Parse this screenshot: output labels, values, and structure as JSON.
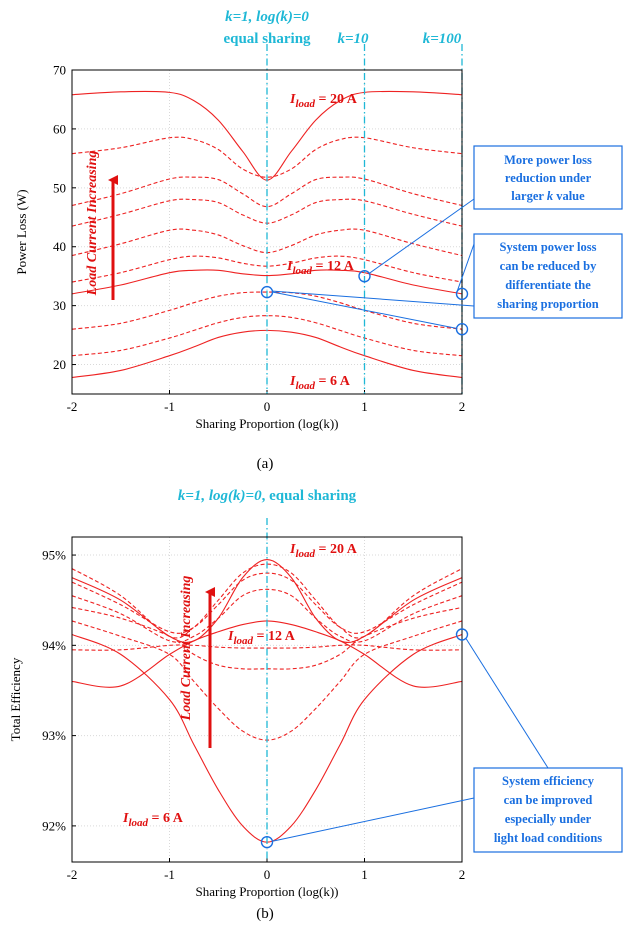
{
  "chart_data": [
    {
      "type": "line",
      "panel_label": "(a)",
      "xlabel": "Sharing Proportion (log(k))",
      "ylabel": "Power Loss (W)",
      "xlim": [
        -2,
        2
      ],
      "ylim": [
        15,
        70
      ],
      "xticks": [
        "-2",
        "-1",
        "0",
        "1",
        "2"
      ],
      "yticks": [
        "20",
        "30",
        "40",
        "50",
        "60",
        "70"
      ],
      "grid": true,
      "x": [
        -2,
        -1.5,
        -1,
        -0.75,
        -0.5,
        -0.25,
        0,
        0.25,
        0.5,
        0.75,
        1,
        1.5,
        2
      ],
      "series": [
        {
          "style": "solid",
          "values": [
            17.8,
            19.0,
            21.5,
            23.0,
            24.6,
            25.5,
            25.8,
            25.5,
            24.6,
            23.0,
            21.5,
            19.0,
            17.8
          ]
        },
        {
          "style": "dashed",
          "values": [
            21.5,
            22.4,
            24.5,
            25.8,
            27.1,
            28.0,
            28.3,
            28.0,
            27.1,
            25.8,
            24.5,
            22.4,
            21.5
          ]
        },
        {
          "style": "dashed",
          "values": [
            26.0,
            27.0,
            29.2,
            30.5,
            31.6,
            32.2,
            32.3,
            32.2,
            31.6,
            30.5,
            29.2,
            27.0,
            26.0
          ]
        },
        {
          "style": "solid",
          "values": [
            32.0,
            33.5,
            35.6,
            36.0,
            36.0,
            35.4,
            35.1,
            35.4,
            36.0,
            36.0,
            35.6,
            33.5,
            32.0
          ]
        },
        {
          "style": "dashed",
          "values": [
            34.0,
            35.6,
            37.8,
            38.4,
            38.1,
            37.2,
            36.7,
            37.2,
            38.1,
            38.4,
            37.8,
            35.6,
            34.0
          ]
        },
        {
          "style": "dashed",
          "values": [
            38.5,
            40.5,
            42.8,
            42.8,
            42.0,
            40.2,
            39.0,
            40.2,
            42.0,
            42.8,
            42.8,
            40.5,
            38.5
          ]
        },
        {
          "style": "dashed",
          "values": [
            43.5,
            45.5,
            47.8,
            48.0,
            47.5,
            45.4,
            44.0,
            45.4,
            47.5,
            48.0,
            47.8,
            45.5,
            43.5
          ]
        },
        {
          "style": "dashed",
          "values": [
            47.0,
            49.0,
            51.5,
            51.8,
            51.4,
            49.0,
            46.8,
            49.0,
            51.4,
            51.8,
            51.5,
            49.0,
            47.0
          ]
        },
        {
          "style": "dashed",
          "values": [
            55.8,
            56.8,
            58.5,
            58.2,
            56.5,
            53.2,
            51.8,
            53.2,
            56.5,
            58.2,
            58.5,
            56.8,
            55.8
          ]
        },
        {
          "style": "solid",
          "values": [
            65.8,
            66.3,
            66.2,
            64.8,
            61.5,
            56.2,
            51.3,
            56.2,
            61.5,
            64.8,
            66.2,
            66.3,
            65.8
          ]
        }
      ],
      "vlines": [
        0,
        1,
        2
      ],
      "vline_labels": [
        {
          "parts": [
            "k=1, log(k)=0"
          ],
          "second": "equal sharing"
        },
        {
          "text": "k=10"
        },
        {
          "text": "k=100"
        }
      ],
      "labels": {
        "i20": {
          "main": "I",
          "sub": "load",
          "rest": " = 20 A"
        },
        "i12": {
          "main": "I",
          "sub": "load",
          "rest": " = 12 A"
        },
        "i6": {
          "main": "I",
          "sub": "load",
          "rest": " = 6 A"
        },
        "arrow": "Load Current Increasing"
      },
      "markers": [
        [
          0,
          32.3
        ],
        [
          1,
          35.0
        ],
        [
          2,
          32.0
        ],
        [
          2,
          26.0
        ]
      ],
      "callouts": [
        {
          "lines": [
            "More power loss",
            "reduction under",
            "larger k value"
          ]
        },
        {
          "lines": [
            "System power loss",
            "can be reduced by",
            "differentiate the",
            "sharing proportion"
          ]
        }
      ]
    },
    {
      "type": "line",
      "panel_label": "(b)",
      "xlabel": "Sharing Proportion (log(k))",
      "ylabel": "Total Efficiency",
      "xlim": [
        -2,
        2
      ],
      "ylim": [
        91.6,
        95.2
      ],
      "xticks": [
        "-2",
        "-1",
        "0",
        "1",
        "2"
      ],
      "yticks": [
        "92%",
        "93%",
        "94%",
        "95%"
      ],
      "grid": true,
      "x": [
        -2,
        -1.5,
        -1,
        -0.75,
        -0.5,
        -0.25,
        0,
        0.25,
        0.5,
        0.75,
        1,
        1.5,
        2
      ],
      "series": [
        {
          "style": "solid",
          "values": [
            94.12,
            93.9,
            93.4,
            92.9,
            92.4,
            92.0,
            91.82,
            92.0,
            92.4,
            92.9,
            93.4,
            93.9,
            94.12
          ]
        },
        {
          "style": "dashed",
          "values": [
            94.27,
            94.1,
            93.9,
            93.6,
            93.3,
            93.05,
            92.95,
            93.05,
            93.3,
            93.6,
            93.9,
            94.1,
            94.27
          ]
        },
        {
          "style": "dashed",
          "values": [
            94.42,
            94.3,
            94.1,
            93.9,
            93.78,
            93.74,
            93.74,
            93.74,
            93.78,
            93.9,
            94.1,
            94.3,
            94.42
          ]
        },
        {
          "style": "dashed",
          "values": [
            93.95,
            93.95,
            94.0,
            94.0,
            93.98,
            93.97,
            93.97,
            93.97,
            93.98,
            94.0,
            94.0,
            93.95,
            93.95
          ]
        },
        {
          "style": "solid",
          "values": [
            93.6,
            93.55,
            93.9,
            94.05,
            94.15,
            94.23,
            94.27,
            94.23,
            94.15,
            94.05,
            93.9,
            93.55,
            93.6
          ]
        },
        {
          "style": "dashed",
          "values": [
            94.55,
            94.35,
            94.05,
            94.1,
            94.3,
            94.55,
            94.62,
            94.55,
            94.3,
            94.1,
            94.05,
            94.35,
            94.55
          ]
        },
        {
          "style": "dashed",
          "values": [
            94.7,
            94.45,
            94.15,
            94.2,
            94.45,
            94.72,
            94.8,
            94.72,
            94.45,
            94.2,
            94.15,
            94.45,
            94.7
          ]
        },
        {
          "style": "dashed",
          "values": [
            94.85,
            94.55,
            94.1,
            94.2,
            94.5,
            94.8,
            94.9,
            94.8,
            94.5,
            94.2,
            94.1,
            94.55,
            94.85
          ]
        },
        {
          "style": "solid",
          "values": [
            94.75,
            94.5,
            94.1,
            94.05,
            94.3,
            94.75,
            94.95,
            94.75,
            94.3,
            94.05,
            94.1,
            94.5,
            94.75
          ]
        }
      ],
      "vlines": [
        0
      ],
      "vline_labels": [
        {
          "parts": [
            "k=1, log(k)=0"
          ],
          "second": ", equal sharing"
        }
      ],
      "labels": {
        "i20": {
          "main": "I",
          "sub": "load",
          "rest": " = 20 A"
        },
        "i12": {
          "main": "I",
          "sub": "load",
          "rest": " = 12 A"
        },
        "i6": {
          "main": "I",
          "sub": "load",
          "rest": " = 6 A"
        },
        "arrow": "Load Current Increasing"
      },
      "markers": [
        [
          0,
          91.82
        ],
        [
          2,
          94.12
        ]
      ],
      "callouts": [
        {
          "lines": [
            "System efficiency",
            "can be improved",
            "especially under",
            "light load conditions"
          ]
        }
      ]
    }
  ],
  "colors": {
    "curve": "#ee2222",
    "cyan": "#1fb8d6",
    "blue": "#1a6fe0",
    "grid": "#d9d9d9"
  }
}
